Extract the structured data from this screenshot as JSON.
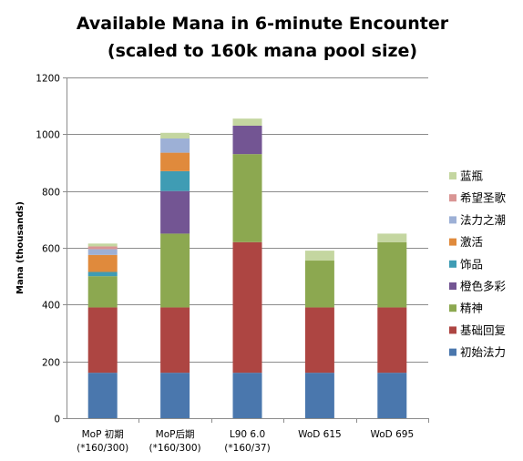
{
  "chart_data": {
    "type": "bar",
    "stacked": true,
    "title_lines": [
      "Available Mana in 6-minute Encounter",
      "(scaled to 160k mana pool size)"
    ],
    "ylabel": "Mana (thousands)",
    "xlabel": "",
    "ylim": [
      0,
      1200
    ],
    "yticks": [
      0,
      200,
      400,
      600,
      800,
      1000,
      1200
    ],
    "grid": true,
    "legend_position": "right",
    "categories": [
      [
        "MoP 初期",
        "(*160/300)"
      ],
      [
        "MoP后期",
        "(*160/300)"
      ],
      [
        "L90 6.0",
        "(*160/37)"
      ],
      [
        "WoD 615",
        ""
      ],
      [
        "WoD 695",
        ""
      ]
    ],
    "series": [
      {
        "name": "初始法力",
        "color": "#4a77ad",
        "values": [
          160,
          160,
          160,
          160,
          160
        ]
      },
      {
        "name": "基础回复",
        "color": "#ad4542",
        "values": [
          230,
          230,
          460,
          230,
          230
        ]
      },
      {
        "name": "精神",
        "color": "#8ca850",
        "values": [
          110,
          260,
          310,
          165,
          230
        ]
      },
      {
        "name": "橙色多彩",
        "color": "#735593",
        "values": [
          0,
          150,
          100,
          0,
          0
        ]
      },
      {
        "name": "饰品",
        "color": "#3f9cb4",
        "values": [
          15,
          70,
          0,
          0,
          0
        ]
      },
      {
        "name": "激活",
        "color": "#e08a3c",
        "values": [
          60,
          65,
          0,
          0,
          0
        ]
      },
      {
        "name": "法力之潮",
        "color": "#9db0d6",
        "values": [
          20,
          50,
          0,
          0,
          0
        ]
      },
      {
        "name": "希望圣歌",
        "color": "#d99594",
        "values": [
          10,
          0,
          0,
          0,
          0
        ]
      },
      {
        "name": "蓝瓶",
        "color": "#c4d6a0",
        "values": [
          10,
          20,
          25,
          35,
          30
        ]
      }
    ]
  }
}
